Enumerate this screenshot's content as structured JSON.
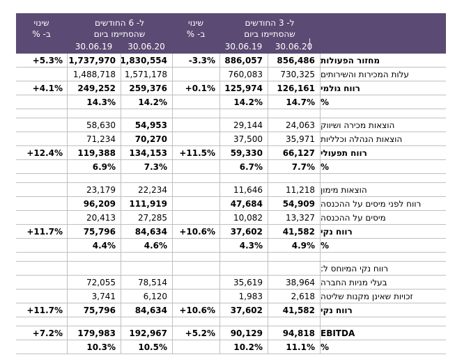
{
  "table": {
    "header": {
      "change": {
        "line1": "שינוי",
        "line2": "ב- %"
      },
      "period6": {
        "line1": "ל- 6 החודשים",
        "line2": "שהסתיימו ביום"
      },
      "period3": {
        "line1": "ל- 3 החודשים",
        "line2": "שהסתיימו ביום"
      },
      "dates": {
        "prior": "30.06.19",
        "current": "30.06.20"
      }
    },
    "rows": [
      {
        "label": "מחזור הפעולות",
        "change6": "+5.3%",
        "m6_19": "1,737,970",
        "m6_20": "1,830,554",
        "change3": "-3.3%",
        "m3_19": "886,057",
        "m3_20": "856,486",
        "bold": "all"
      },
      {
        "label": "עלות המכירות והשירותים",
        "change6": "",
        "m6_19": "1,488,718",
        "m6_20": "1,571,178",
        "change3": "",
        "m3_19": "760,083",
        "m3_20": "730,325",
        "bold": "none"
      },
      {
        "label": "רווח גולמי",
        "change6": "+4.1%",
        "m6_19": "249,252",
        "m6_20": "259,376",
        "change3": "+0.1%",
        "m3_19": "125,974",
        "m3_20": "126,161",
        "bold": "all"
      },
      {
        "label": "%",
        "change6": "",
        "m6_19": "14.3%",
        "m6_20": "14.2%",
        "change3": "",
        "m3_19": "14.2%",
        "m3_20": "14.7%",
        "bold": "all"
      },
      {
        "gap": true
      },
      {
        "label": "הוצאות מכירה ושיווק",
        "change6": "",
        "m6_19": "58,630",
        "m6_20": "54,953",
        "change3": "",
        "m3_19": "29,144",
        "m3_20": "24,063",
        "bold": "none",
        "bold_cells": [
          "m6_20"
        ]
      },
      {
        "label": "הוצאות הנהלה וכלליות",
        "change6": "",
        "m6_19": "71,234",
        "m6_20": "70,270",
        "change3": "",
        "m3_19": "37,500",
        "m3_20": "35,971",
        "bold": "none",
        "bold_cells": [
          "m6_20"
        ]
      },
      {
        "label": "רווח תפעולי",
        "change6": "+12.4%",
        "m6_19": "119,388",
        "m6_20": "134,153",
        "change3": "+11.5%",
        "m3_19": "59,330",
        "m3_20": "66,127",
        "bold": "all"
      },
      {
        "label": "%",
        "change6": "",
        "m6_19": "6.9%",
        "m6_20": "7.3%",
        "change3": "",
        "m3_19": "6.7%",
        "m3_20": "7.7%",
        "bold": "all"
      },
      {
        "gap": true
      },
      {
        "label": "הוצאות מימון",
        "change6": "",
        "m6_19": "23,179",
        "m6_20": "22,234",
        "change3": "",
        "m3_19": "11,646",
        "m3_20": "11,218",
        "bold": "none"
      },
      {
        "label": "רווח לפני מיסים על ההכנסה",
        "change6": "",
        "m6_19": "96,209",
        "m6_20": "111,919",
        "change3": "",
        "m3_19": "47,684",
        "m3_20": "54,909",
        "bold": "values"
      },
      {
        "label": "מיסים על ההכנסה",
        "change6": "",
        "m6_19": "20,413",
        "m6_20": "27,285",
        "change3": "",
        "m3_19": "10,082",
        "m3_20": "13,327",
        "bold": "none"
      },
      {
        "label": "רווח נקי",
        "change6": "+11.7%",
        "m6_19": "75,796",
        "m6_20": "84,634",
        "change3": "+10.6%",
        "m3_19": "37,602",
        "m3_20": "41,582",
        "bold": "all"
      },
      {
        "label": "%",
        "change6": "",
        "m6_19": "4.4%",
        "m6_20": "4.6%",
        "change3": "",
        "m3_19": "4.3%",
        "m3_20": "4.9%",
        "bold": "all"
      },
      {
        "gap": true
      },
      {
        "label": "רווח נקי המיוחס ל:",
        "change6": "",
        "m6_19": "",
        "m6_20": "",
        "change3": "",
        "m3_19": "",
        "m3_20": "",
        "bold": "none"
      },
      {
        "label": "בעלי מניות החברה",
        "change6": "",
        "m6_19": "72,055",
        "m6_20": "78,514",
        "change3": "",
        "m3_19": "35,619",
        "m3_20": "38,964",
        "bold": "none"
      },
      {
        "label": "זכויות שאינן מקנות שליטה",
        "change6": "",
        "m6_19": "3,741",
        "m6_20": "6,120",
        "change3": "",
        "m3_19": "1,983",
        "m3_20": "2,618",
        "bold": "none"
      },
      {
        "label": "רווח נקי",
        "change6": "+11.7%",
        "m6_19": "75,796",
        "m6_20": "84,634",
        "change3": "+10.6%",
        "m3_19": "37,602",
        "m3_20": "41,582",
        "bold": "all"
      },
      {
        "gap": true
      },
      {
        "label": "EBITDA",
        "change6": "+7.2%",
        "m6_19": "179,983",
        "m6_20": "192,967",
        "change3": "+5.2%",
        "m3_19": "90,129",
        "m3_20": "94,818",
        "bold": "all"
      },
      {
        "label": "%",
        "change6": "",
        "m6_19": "10.3%",
        "m6_20": "10.5%",
        "change3": "",
        "m3_19": "10.2%",
        "m3_20": "11.1%",
        "bold": "all"
      }
    ]
  },
  "colors": {
    "header_bg": "#5b4a73",
    "header_text": "#ffffff",
    "grid_line": "#bfbfbf",
    "body_text": "#000000"
  }
}
